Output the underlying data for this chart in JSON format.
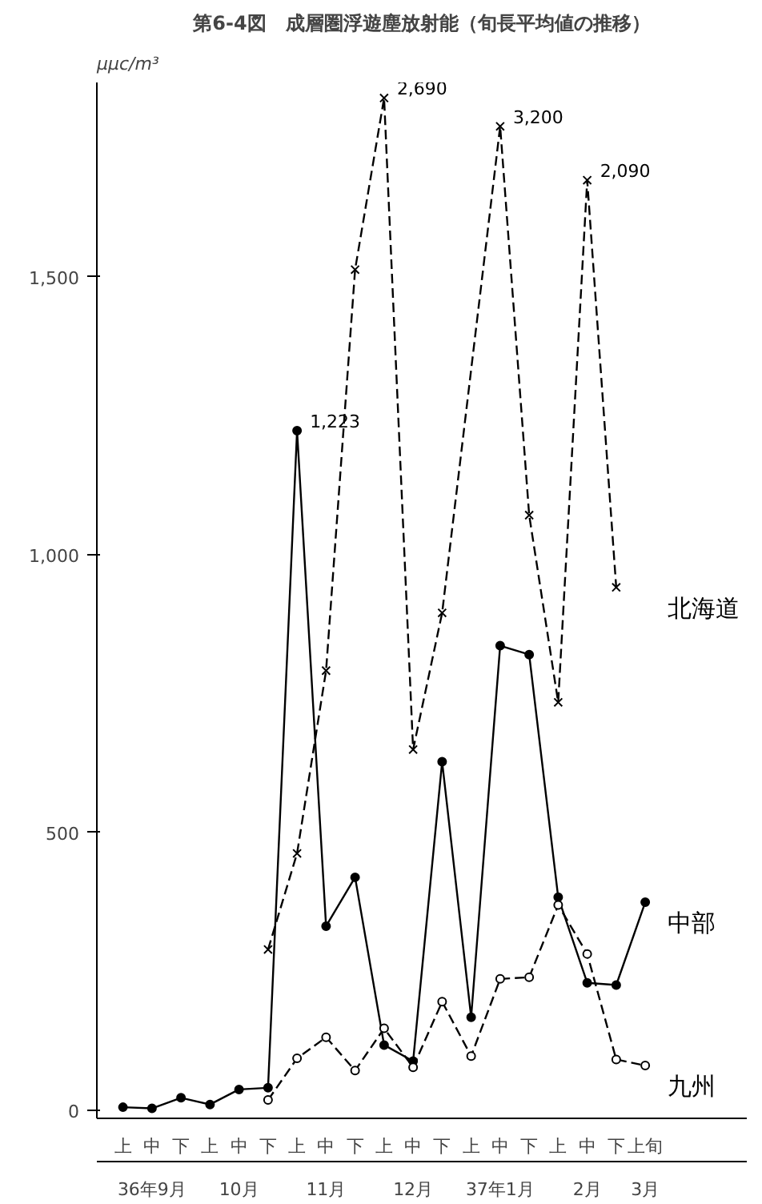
{
  "chart_data": {
    "type": "line",
    "title": "第6-4図　成層圏浮遊塵放射能（旬長平均値の推移）",
    "ylabel": "μμc/m³",
    "categories": [
      "上",
      "中",
      "下",
      "上",
      "中",
      "下",
      "上",
      "中",
      "下",
      "上",
      "中",
      "下",
      "上",
      "中",
      "下",
      "上",
      "中",
      "下",
      "上旬"
    ],
    "annotations": [
      "36年9月",
      "10月",
      "11月",
      "12月",
      "37年1月",
      "2月",
      "3月",
      "2,690",
      "3,200",
      "2,090"
    ],
    "ylim": [
      -15,
      1850
    ],
    "yticks": [
      0,
      500,
      {
        "value": 1000,
        "label": "1,000"
      },
      {
        "value": 1500,
        "label": "1,500"
      }
    ],
    "grid": false,
    "legend": false,
    "series": [
      {
        "name": "北海道",
        "color": "#000000",
        "marker": "cross",
        "line_style": "dashed",
        "values": [
          null,
          null,
          null,
          null,
          null,
          289,
          462,
          791,
          1513,
          1822,
          649,
          895,
          null,
          1771,
          1071,
          734,
          1674,
          941,
          null
        ]
      },
      {
        "name": "中部",
        "color": "#000000",
        "marker": "circle",
        "line_style": "solid",
        "values": [
          5,
          3,
          22,
          10,
          37,
          40,
          1223,
          331,
          419,
          117,
          88,
          627,
          167,
          836,
          820,
          383,
          229,
          225,
          374
        ],
        "value_labels": [
          null,
          null,
          null,
          null,
          null,
          null,
          "1,223",
          null,
          null,
          null,
          null,
          null,
          null,
          null,
          null,
          null,
          null,
          null,
          null
        ]
      },
      {
        "name": "九州",
        "color": "#000000",
        "marker": "circle",
        "line_style": "dashed",
        "values": [
          null,
          null,
          null,
          null,
          null,
          18,
          93,
          131,
          71,
          147,
          77,
          195,
          97,
          236,
          239,
          369,
          281,
          91,
          80
        ]
      }
    ]
  }
}
